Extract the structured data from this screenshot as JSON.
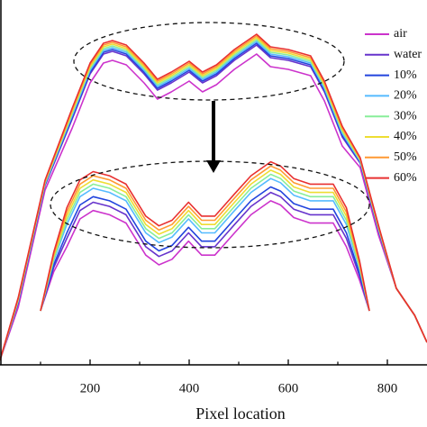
{
  "chart_data": [
    {
      "type": "line",
      "x_label": "Pixel location",
      "x": [
        18,
        55,
        109,
        164,
        200,
        227,
        245,
        273,
        309,
        336,
        364,
        400,
        427,
        455,
        491,
        536,
        564,
        600,
        645,
        673,
        709,
        745,
        782,
        818,
        855,
        880
      ],
      "xlim": [
        0,
        880
      ],
      "xticks": [
        200,
        400,
        600,
        800
      ],
      "xminor_ticks": [
        100,
        300,
        500,
        700
      ],
      "ylim": [
        0,
        400
      ],
      "legend": "top-right",
      "series": [
        {
          "name": "air",
          "color": "#cc33cc",
          "values": [
            5,
            64,
            194,
            263,
            313,
            335,
            338,
            333,
            313,
            295,
            303,
            315,
            303,
            311,
            328,
            345,
            331,
            328,
            321,
            293,
            243,
            219,
            144,
            85,
            55,
            25
          ]
        },
        {
          "name": "water",
          "color": "#6633cc",
          "values": [
            5,
            69,
            199,
            273,
            323,
            345,
            348,
            343,
            323,
            305,
            313,
            325,
            313,
            321,
            338,
            355,
            341,
            338,
            331,
            303,
            253,
            224,
            149,
            85,
            55,
            25
          ]
        },
        {
          "name": "10%",
          "color": "#2244dd",
          "values": [
            5,
            70,
            200,
            275,
            325,
            347,
            350,
            345,
            325,
            307,
            315,
            327,
            315,
            323,
            340,
            357,
            343,
            340,
            333,
            305,
            255,
            225,
            150,
            85,
            55,
            25
          ]
        },
        {
          "name": "20%",
          "color": "#55bbff",
          "values": [
            5,
            71,
            201,
            277,
            327,
            349,
            352,
            347,
            327,
            309,
            317,
            329,
            317,
            325,
            342,
            359,
            345,
            342,
            335,
            307,
            257,
            226,
            151,
            85,
            55,
            25
          ]
        },
        {
          "name": "30%",
          "color": "#88ee99",
          "values": [
            5,
            72,
            202,
            279,
            329,
            351,
            354,
            349,
            329,
            311,
            319,
            331,
            319,
            327,
            344,
            361,
            347,
            344,
            337,
            309,
            259,
            227,
            152,
            85,
            55,
            25
          ]
        },
        {
          "name": "40%",
          "color": "#eedd33",
          "values": [
            5,
            73,
            203,
            281,
            331,
            353,
            356,
            351,
            331,
            313,
            321,
            333,
            321,
            329,
            346,
            363,
            349,
            346,
            339,
            311,
            261,
            228,
            153,
            85,
            55,
            25
          ]
        },
        {
          "name": "50%",
          "color": "#ff9933",
          "values": [
            5,
            74,
            204,
            283,
            333,
            355,
            358,
            353,
            333,
            315,
            323,
            335,
            323,
            331,
            348,
            365,
            351,
            348,
            341,
            313,
            263,
            229,
            154,
            85,
            55,
            25
          ]
        },
        {
          "name": "60%",
          "color": "#e83030",
          "values": [
            5,
            75,
            205,
            285,
            335,
            357,
            360,
            355,
            335,
            317,
            325,
            337,
            325,
            333,
            350,
            367,
            353,
            350,
            343,
            315,
            265,
            230,
            155,
            85,
            55,
            25
          ]
        }
      ]
    },
    {
      "type": "inset-line",
      "x": [
        0,
        4,
        8,
        12,
        16,
        21,
        26,
        32,
        36,
        40,
        45,
        49,
        53,
        59,
        64,
        70,
        73,
        77,
        82,
        89,
        93,
        97,
        100
      ],
      "xlim": [
        0,
        100
      ],
      "ylim": [
        0,
        110
      ],
      "series": [
        {
          "color": "#cc33cc",
          "values": [
            0,
            28,
            46,
            66,
            72,
            69,
            63,
            40,
            33,
            37,
            50,
            40,
            40,
            56,
            69,
            79,
            76,
            67,
            63,
            63,
            46,
            22,
            0
          ]
        },
        {
          "color": "#6633cc",
          "values": [
            0,
            31,
            52,
            72,
            78,
            75,
            69,
            46,
            39,
            43,
            56,
            46,
            46,
            62,
            75,
            85,
            82,
            73,
            69,
            69,
            52,
            25,
            0
          ]
        },
        {
          "color": "#2244dd",
          "values": [
            0,
            33,
            56,
            76,
            82,
            79,
            73,
            50,
            43,
            47,
            60,
            50,
            50,
            66,
            79,
            89,
            86,
            77,
            73,
            73,
            56,
            27,
            0
          ]
        },
        {
          "color": "#55bbff",
          "values": [
            0,
            36,
            62,
            82,
            88,
            85,
            79,
            56,
            49,
            53,
            66,
            56,
            56,
            72,
            85,
            95,
            92,
            83,
            79,
            79,
            62,
            30,
            0
          ]
        },
        {
          "color": "#88ee99",
          "values": [
            0,
            37,
            65,
            85,
            91,
            88,
            82,
            59,
            52,
            56,
            69,
            59,
            59,
            75,
            88,
            98,
            95,
            86,
            82,
            82,
            65,
            31,
            0
          ]
        },
        {
          "color": "#eedd33",
          "values": [
            0,
            39,
            68,
            88,
            94,
            91,
            85,
            62,
            55,
            59,
            72,
            62,
            62,
            78,
            91,
            101,
            98,
            89,
            85,
            85,
            68,
            33,
            0
          ]
        },
        {
          "color": "#ff9933",
          "values": [
            0,
            40,
            71,
            91,
            97,
            94,
            88,
            65,
            58,
            62,
            75,
            65,
            65,
            81,
            94,
            104,
            101,
            92,
            88,
            88,
            71,
            34,
            0
          ]
        },
        {
          "color": "#e83030",
          "values": [
            0,
            42,
            74,
            94,
            100,
            97,
            91,
            68,
            61,
            65,
            78,
            68,
            68,
            84,
            97,
            107,
            104,
            95,
            91,
            91,
            74,
            36,
            0
          ]
        }
      ]
    }
  ]
}
